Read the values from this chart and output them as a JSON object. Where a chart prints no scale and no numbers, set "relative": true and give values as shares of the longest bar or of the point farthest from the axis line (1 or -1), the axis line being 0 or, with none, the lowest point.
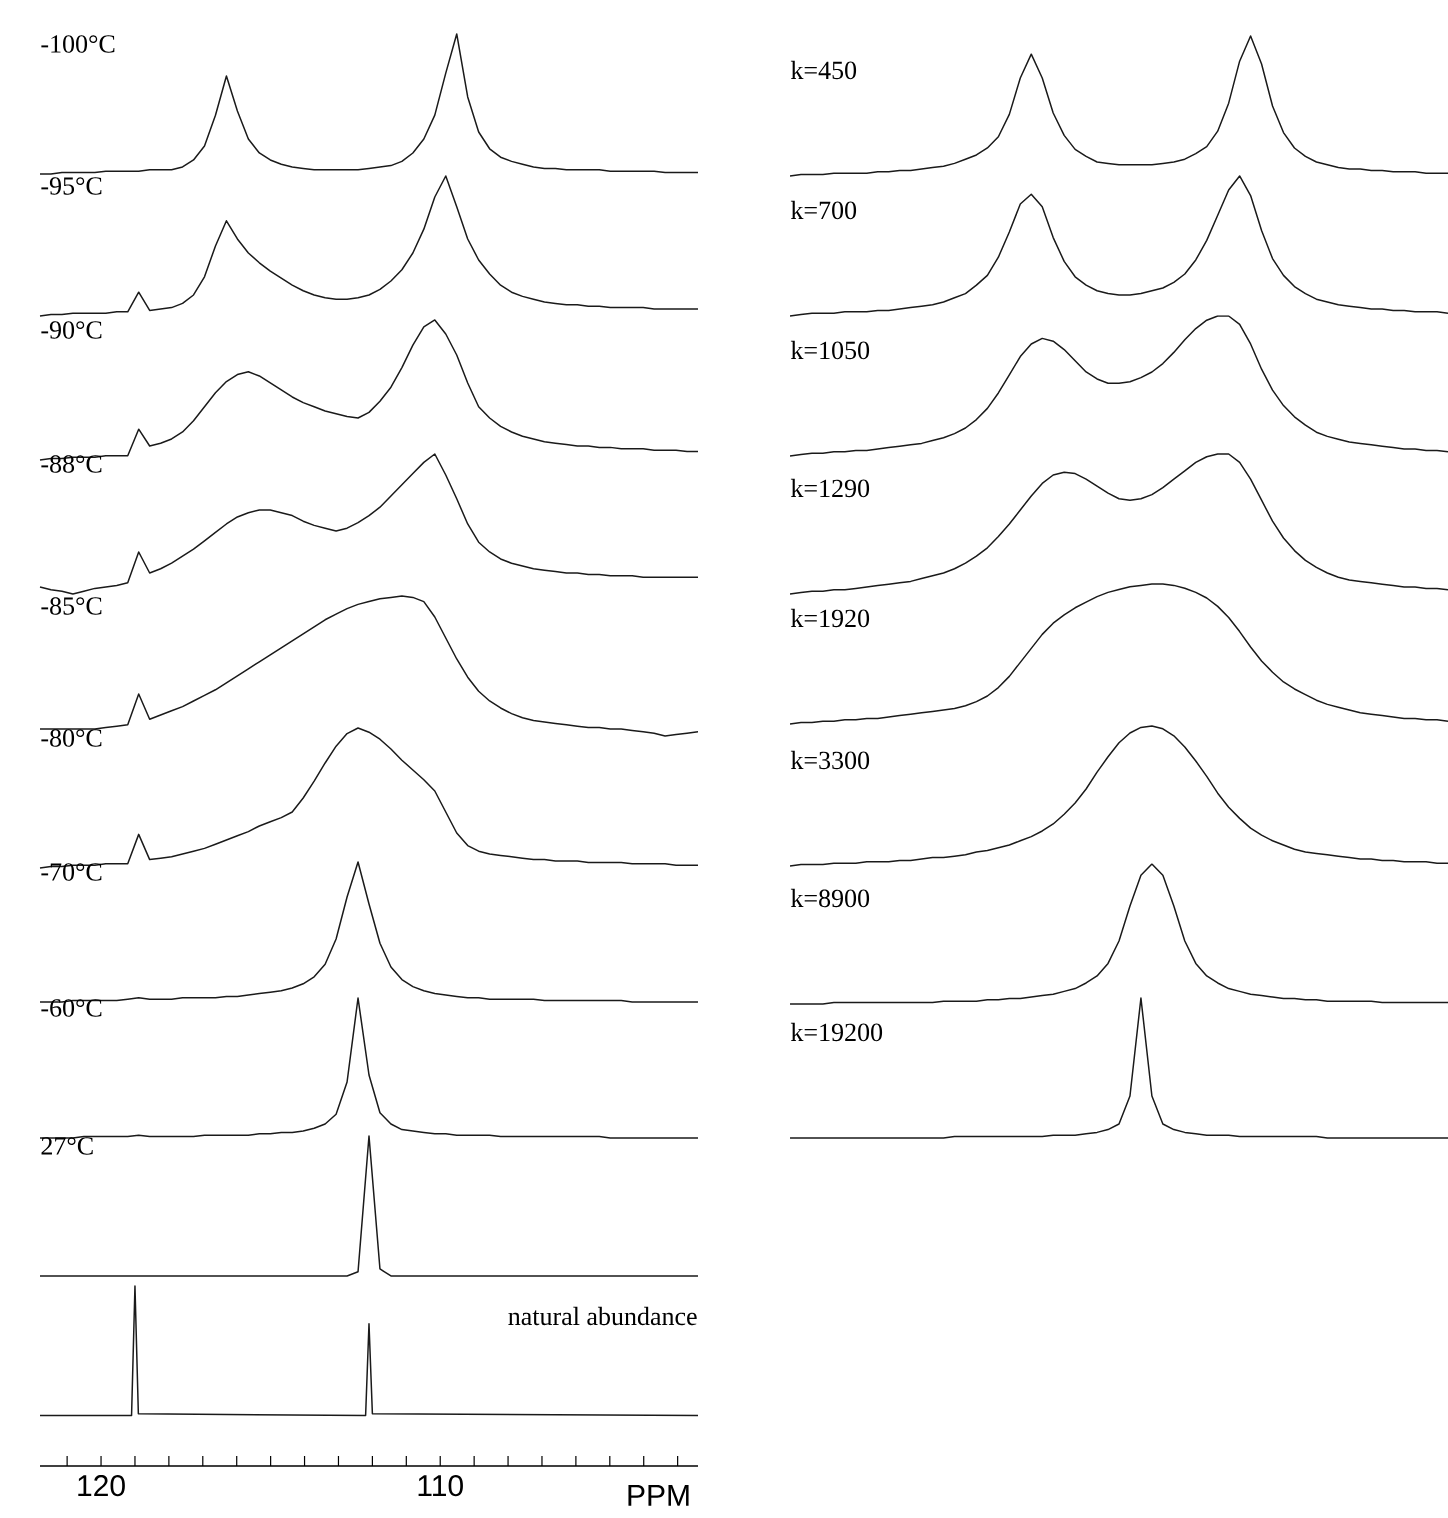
{
  "chart_data": [
    {
      "type": "line",
      "title": "-100°C",
      "relative": true,
      "color": "#1a1a1a",
      "categories": [
        null,
        null,
        null,
        null,
        null,
        null,
        null,
        null,
        null,
        null,
        null,
        null,
        null,
        null,
        null,
        null,
        null,
        null,
        null,
        null,
        null,
        null,
        null,
        null,
        null,
        null,
        null,
        null,
        null,
        null,
        null,
        null,
        null,
        null,
        null,
        null,
        null,
        null,
        null,
        null,
        null,
        null,
        null,
        null,
        null,
        null,
        null,
        null,
        null,
        null,
        null,
        null,
        null,
        null,
        null,
        null,
        null,
        null,
        null,
        null,
        null
      ],
      "values": [
        0,
        0,
        0.01,
        0.01,
        0.01,
        0.01,
        0.02,
        0.02,
        0.02,
        0.02,
        0.03,
        0.03,
        0.03,
        0.05,
        0.1,
        0.2,
        0.42,
        0.7,
        0.45,
        0.25,
        0.15,
        0.1,
        0.07,
        0.05,
        0.04,
        0.03,
        0.03,
        0.03,
        0.03,
        0.03,
        0.04,
        0.05,
        0.06,
        0.09,
        0.15,
        0.25,
        0.42,
        0.72,
        1.0,
        0.55,
        0.3,
        0.18,
        0.12,
        0.09,
        0.07,
        0.05,
        0.04,
        0.04,
        0.03,
        0.03,
        0.03,
        0.03,
        0.02,
        0.02,
        0.02,
        0.02,
        0.02,
        0.01,
        0.01,
        0.01,
        0.01
      ]
    },
    {
      "type": "line",
      "title": "-95°C",
      "relative": true,
      "color": "#1a1a1a",
      "categories": [
        null,
        null,
        null,
        null,
        null,
        null,
        null,
        null,
        null,
        null,
        null,
        null,
        null,
        null,
        null,
        null,
        null,
        null,
        null,
        null,
        null,
        null,
        null,
        null,
        null,
        null,
        null,
        null,
        null,
        null,
        null,
        null,
        null,
        null,
        null,
        null,
        null,
        null,
        null,
        null,
        null,
        null,
        null,
        null,
        null,
        null,
        null,
        null,
        null,
        null,
        null,
        null,
        null,
        null,
        null,
        null,
        null,
        null,
        null,
        null,
        null
      ],
      "values": [
        0,
        0.01,
        0.01,
        0.02,
        0.02,
        0.02,
        0.02,
        0.03,
        0.03,
        0.17,
        0.04,
        0.05,
        0.06,
        0.09,
        0.15,
        0.28,
        0.5,
        0.68,
        0.55,
        0.45,
        0.38,
        0.32,
        0.27,
        0.22,
        0.18,
        0.15,
        0.13,
        0.12,
        0.12,
        0.13,
        0.15,
        0.19,
        0.25,
        0.33,
        0.45,
        0.62,
        0.85,
        1.0,
        0.78,
        0.55,
        0.4,
        0.3,
        0.22,
        0.17,
        0.14,
        0.12,
        0.1,
        0.09,
        0.08,
        0.08,
        0.07,
        0.07,
        0.06,
        0.06,
        0.06,
        0.06,
        0.05,
        0.05,
        0.05,
        0.05,
        0.05
      ]
    },
    {
      "type": "line",
      "title": "-90°C",
      "relative": true,
      "color": "#1a1a1a",
      "categories": [
        null,
        null,
        null,
        null,
        null,
        null,
        null,
        null,
        null,
        null,
        null,
        null,
        null,
        null,
        null,
        null,
        null,
        null,
        null,
        null,
        null,
        null,
        null,
        null,
        null,
        null,
        null,
        null,
        null,
        null,
        null,
        null,
        null,
        null,
        null,
        null,
        null,
        null,
        null,
        null,
        null,
        null,
        null,
        null,
        null,
        null,
        null,
        null,
        null,
        null,
        null,
        null,
        null,
        null,
        null,
        null,
        null,
        null,
        null,
        null,
        null
      ],
      "values": [
        0,
        0.01,
        0.01,
        0.02,
        0.02,
        0.02,
        0.03,
        0.03,
        0.03,
        0.22,
        0.1,
        0.12,
        0.15,
        0.2,
        0.28,
        0.38,
        0.48,
        0.56,
        0.61,
        0.63,
        0.6,
        0.55,
        0.5,
        0.45,
        0.41,
        0.38,
        0.35,
        0.33,
        0.31,
        0.3,
        0.34,
        0.42,
        0.52,
        0.66,
        0.82,
        0.95,
        1.0,
        0.9,
        0.75,
        0.55,
        0.38,
        0.3,
        0.24,
        0.2,
        0.17,
        0.15,
        0.13,
        0.12,
        0.11,
        0.1,
        0.1,
        0.09,
        0.09,
        0.08,
        0.08,
        0.08,
        0.07,
        0.07,
        0.07,
        0.06,
        0.06
      ]
    },
    {
      "type": "line",
      "title": "-88°C",
      "relative": true,
      "color": "#1a1a1a",
      "categories": [
        null,
        null,
        null,
        null,
        null,
        null,
        null,
        null,
        null,
        null,
        null,
        null,
        null,
        null,
        null,
        null,
        null,
        null,
        null,
        null,
        null,
        null,
        null,
        null,
        null,
        null,
        null,
        null,
        null,
        null,
        null,
        null,
        null,
        null,
        null,
        null,
        null,
        null,
        null,
        null,
        null,
        null,
        null,
        null,
        null,
        null,
        null,
        null,
        null,
        null,
        null,
        null,
        null,
        null,
        null,
        null,
        null,
        null,
        null,
        null,
        null
      ],
      "values": [
        0.05,
        0.03,
        0.02,
        0,
        0.02,
        0.04,
        0.05,
        0.06,
        0.08,
        0.3,
        0.15,
        0.18,
        0.22,
        0.27,
        0.32,
        0.38,
        0.44,
        0.5,
        0.55,
        0.58,
        0.6,
        0.6,
        0.58,
        0.56,
        0.52,
        0.49,
        0.47,
        0.45,
        0.47,
        0.51,
        0.56,
        0.62,
        0.7,
        0.78,
        0.86,
        0.94,
        1.0,
        0.85,
        0.68,
        0.5,
        0.37,
        0.3,
        0.25,
        0.22,
        0.2,
        0.18,
        0.17,
        0.16,
        0.15,
        0.15,
        0.14,
        0.14,
        0.13,
        0.13,
        0.13,
        0.12,
        0.12,
        0.12,
        0.12,
        0.12,
        0.12
      ]
    },
    {
      "type": "line",
      "title": "-85°C",
      "relative": true,
      "color": "#1a1a1a",
      "categories": [
        null,
        null,
        null,
        null,
        null,
        null,
        null,
        null,
        null,
        null,
        null,
        null,
        null,
        null,
        null,
        null,
        null,
        null,
        null,
        null,
        null,
        null,
        null,
        null,
        null,
        null,
        null,
        null,
        null,
        null,
        null,
        null,
        null,
        null,
        null,
        null,
        null,
        null,
        null,
        null,
        null,
        null,
        null,
        null,
        null,
        null,
        null,
        null,
        null,
        null,
        null,
        null,
        null,
        null,
        null,
        null,
        null,
        null,
        null,
        null,
        null
      ],
      "values": [
        0.05,
        0.05,
        0.05,
        0.05,
        0.05,
        0.05,
        0.06,
        0.07,
        0.08,
        0.3,
        0.12,
        0.15,
        0.18,
        0.21,
        0.25,
        0.29,
        0.33,
        0.38,
        0.43,
        0.48,
        0.53,
        0.58,
        0.63,
        0.68,
        0.73,
        0.78,
        0.83,
        0.87,
        0.91,
        0.94,
        0.96,
        0.98,
        0.99,
        1.0,
        0.99,
        0.96,
        0.85,
        0.7,
        0.55,
        0.42,
        0.32,
        0.25,
        0.2,
        0.16,
        0.13,
        0.11,
        0.1,
        0.09,
        0.08,
        0.07,
        0.06,
        0.06,
        0.05,
        0.05,
        0.04,
        0.03,
        0.02,
        0,
        0.01,
        0.02,
        0.03
      ]
    },
    {
      "type": "line",
      "title": "-80°C",
      "relative": true,
      "color": "#1a1a1a",
      "categories": [
        null,
        null,
        null,
        null,
        null,
        null,
        null,
        null,
        null,
        null,
        null,
        null,
        null,
        null,
        null,
        null,
        null,
        null,
        null,
        null,
        null,
        null,
        null,
        null,
        null,
        null,
        null,
        null,
        null,
        null,
        null,
        null,
        null,
        null,
        null,
        null,
        null,
        null,
        null,
        null,
        null,
        null,
        null,
        null,
        null,
        null,
        null,
        null,
        null,
        null,
        null,
        null,
        null,
        null,
        null,
        null,
        null,
        null,
        null,
        null,
        null
      ],
      "values": [
        0,
        0.01,
        0.01,
        0.02,
        0.02,
        0.02,
        0.03,
        0.03,
        0.03,
        0.24,
        0.06,
        0.07,
        0.08,
        0.1,
        0.12,
        0.14,
        0.17,
        0.2,
        0.23,
        0.26,
        0.3,
        0.33,
        0.36,
        0.4,
        0.5,
        0.62,
        0.75,
        0.87,
        0.96,
        1.0,
        0.97,
        0.92,
        0.85,
        0.77,
        0.7,
        0.63,
        0.55,
        0.4,
        0.25,
        0.16,
        0.12,
        0.1,
        0.09,
        0.08,
        0.07,
        0.06,
        0.06,
        0.05,
        0.05,
        0.05,
        0.04,
        0.04,
        0.04,
        0.04,
        0.03,
        0.03,
        0.03,
        0.03,
        0.02,
        0.02,
        0.02
      ]
    },
    {
      "type": "line",
      "title": "-70°C",
      "relative": true,
      "color": "#1a1a1a",
      "categories": [
        null,
        null,
        null,
        null,
        null,
        null,
        null,
        null,
        null,
        null,
        null,
        null,
        null,
        null,
        null,
        null,
        null,
        null,
        null,
        null,
        null,
        null,
        null,
        null,
        null,
        null,
        null,
        null,
        null,
        null,
        null,
        null,
        null,
        null,
        null,
        null,
        null,
        null,
        null,
        null,
        null,
        null,
        null,
        null,
        null,
        null,
        null,
        null,
        null,
        null,
        null,
        null,
        null,
        null,
        null,
        null,
        null,
        null,
        null,
        null,
        null
      ],
      "values": [
        0,
        0,
        0,
        0.01,
        0.01,
        0.01,
        0.01,
        0.01,
        0.02,
        0.03,
        0.02,
        0.02,
        0.02,
        0.03,
        0.03,
        0.03,
        0.03,
        0.04,
        0.04,
        0.05,
        0.06,
        0.07,
        0.08,
        0.1,
        0.13,
        0.18,
        0.27,
        0.45,
        0.75,
        1.0,
        0.7,
        0.42,
        0.25,
        0.16,
        0.11,
        0.08,
        0.06,
        0.05,
        0.04,
        0.03,
        0.03,
        0.02,
        0.02,
        0.02,
        0.02,
        0.02,
        0.01,
        0.01,
        0.01,
        0.01,
        0.01,
        0.01,
        0.01,
        0.01,
        0,
        0,
        0,
        0,
        0,
        0,
        0
      ]
    },
    {
      "type": "line",
      "title": "-60°C",
      "relative": true,
      "color": "#1a1a1a",
      "categories": [
        null,
        null,
        null,
        null,
        null,
        null,
        null,
        null,
        null,
        null,
        null,
        null,
        null,
        null,
        null,
        null,
        null,
        null,
        null,
        null,
        null,
        null,
        null,
        null,
        null,
        null,
        null,
        null,
        null,
        null,
        null,
        null,
        null,
        null,
        null,
        null,
        null,
        null,
        null,
        null,
        null,
        null,
        null,
        null,
        null,
        null,
        null,
        null,
        null,
        null,
        null,
        null,
        null,
        null,
        null,
        null,
        null,
        null,
        null,
        null,
        null
      ],
      "values": [
        0,
        0,
        0,
        0,
        0.01,
        0.01,
        0.01,
        0.01,
        0.01,
        0.02,
        0.01,
        0.01,
        0.01,
        0.01,
        0.01,
        0.02,
        0.02,
        0.02,
        0.02,
        0.02,
        0.03,
        0.03,
        0.04,
        0.04,
        0.05,
        0.07,
        0.1,
        0.17,
        0.4,
        1.0,
        0.45,
        0.18,
        0.1,
        0.06,
        0.05,
        0.04,
        0.03,
        0.03,
        0.02,
        0.02,
        0.02,
        0.02,
        0.01,
        0.01,
        0.01,
        0.01,
        0.01,
        0.01,
        0.01,
        0.01,
        0.01,
        0.01,
        0,
        0,
        0,
        0,
        0,
        0,
        0,
        0,
        0
      ]
    },
    {
      "type": "line",
      "title": "27°C",
      "relative": true,
      "color": "#1a1a1a",
      "categories": [
        null,
        null,
        null,
        null,
        null,
        null,
        null,
        null,
        null,
        null,
        null,
        null,
        null,
        null,
        null,
        null,
        null,
        null,
        null,
        null,
        null,
        null,
        null,
        null,
        null,
        null,
        null,
        null,
        null,
        null,
        null,
        null,
        null,
        null,
        null,
        null,
        null,
        null,
        null,
        null,
        null,
        null,
        null,
        null,
        null,
        null,
        null,
        null,
        null,
        null,
        null,
        null,
        null,
        null,
        null,
        null,
        null,
        null,
        null,
        null,
        null
      ],
      "values": [
        0,
        0,
        0,
        0,
        0,
        0,
        0,
        0,
        0,
        0,
        0,
        0,
        0,
        0,
        0,
        0,
        0,
        0,
        0,
        0,
        0,
        0,
        0,
        0,
        0,
        0,
        0,
        0,
        0,
        0.03,
        1.0,
        0.05,
        0,
        0,
        0,
        0,
        0,
        0,
        0,
        0,
        0,
        0,
        0,
        0,
        0,
        0,
        0,
        0,
        0,
        0,
        0,
        0,
        0,
        0,
        0,
        0,
        0,
        0,
        0,
        0,
        0
      ]
    },
    {
      "type": "line",
      "annotations": [
        "natural abundance"
      ],
      "xlabel": "PPM",
      "relative": true,
      "color": "#1a1a1a",
      "tick_labels": "x",
      "xlim": [
        121.8,
        102.4
      ],
      "xticks": [
        {
          "value": 121,
          "label": null
        },
        120,
        {
          "value": 119,
          "label": null
        },
        {
          "value": 118,
          "label": null
        },
        {
          "value": 117,
          "label": null
        },
        {
          "value": 116,
          "label": null
        },
        {
          "value": 115,
          "label": null
        },
        {
          "value": 114,
          "label": null
        },
        {
          "value": 113,
          "label": null
        },
        {
          "value": 112,
          "label": null
        },
        {
          "value": 111,
          "label": null
        },
        110,
        {
          "value": 109,
          "label": null
        },
        {
          "value": 108,
          "label": null
        },
        {
          "value": 107,
          "label": null
        },
        {
          "value": 106,
          "label": null
        },
        {
          "value": 105,
          "label": null
        },
        {
          "value": 104,
          "label": null
        },
        {
          "value": 103,
          "label": null
        }
      ],
      "x": [
        121.8,
        119.1,
        119.0,
        118.9,
        112.2,
        112.1,
        112.0,
        102.4
      ],
      "values": [
        0.28,
        0.28,
        1.0,
        0.29,
        0.28,
        0.79,
        0.29,
        0.28
      ]
    },
    {
      "type": "line",
      "title": "k=450",
      "relative": true,
      "color": "#1a1a1a",
      "categories": [
        null,
        null,
        null,
        null,
        null,
        null,
        null,
        null,
        null,
        null,
        null,
        null,
        null,
        null,
        null,
        null,
        null,
        null,
        null,
        null,
        null,
        null,
        null,
        null,
        null,
        null,
        null,
        null,
        null,
        null,
        null,
        null,
        null,
        null,
        null,
        null,
        null,
        null,
        null,
        null,
        null,
        null,
        null,
        null,
        null,
        null,
        null,
        null,
        null,
        null,
        null,
        null,
        null,
        null,
        null,
        null,
        null,
        null,
        null,
        null,
        null
      ],
      "values": [
        0,
        0.01,
        0.01,
        0.01,
        0.02,
        0.02,
        0.02,
        0.02,
        0.03,
        0.03,
        0.04,
        0.04,
        0.05,
        0.06,
        0.07,
        0.09,
        0.12,
        0.15,
        0.2,
        0.28,
        0.44,
        0.7,
        0.87,
        0.7,
        0.45,
        0.29,
        0.19,
        0.14,
        0.1,
        0.09,
        0.08,
        0.08,
        0.08,
        0.08,
        0.09,
        0.1,
        0.12,
        0.16,
        0.21,
        0.32,
        0.52,
        0.82,
        1.0,
        0.8,
        0.5,
        0.31,
        0.2,
        0.14,
        0.1,
        0.08,
        0.06,
        0.05,
        0.05,
        0.04,
        0.04,
        0.03,
        0.03,
        0.03,
        0.02,
        0.02,
        0.02
      ]
    },
    {
      "type": "line",
      "title": "k=700",
      "relative": true,
      "color": "#1a1a1a",
      "categories": [
        null,
        null,
        null,
        null,
        null,
        null,
        null,
        null,
        null,
        null,
        null,
        null,
        null,
        null,
        null,
        null,
        null,
        null,
        null,
        null,
        null,
        null,
        null,
        null,
        null,
        null,
        null,
        null,
        null,
        null,
        null,
        null,
        null,
        null,
        null,
        null,
        null,
        null,
        null,
        null,
        null,
        null,
        null,
        null,
        null,
        null,
        null,
        null,
        null,
        null,
        null,
        null,
        null,
        null,
        null,
        null,
        null,
        null,
        null,
        null,
        null
      ],
      "values": [
        0,
        0.01,
        0.02,
        0.02,
        0.02,
        0.03,
        0.03,
        0.03,
        0.04,
        0.04,
        0.05,
        0.06,
        0.07,
        0.08,
        0.1,
        0.13,
        0.16,
        0.22,
        0.29,
        0.42,
        0.6,
        0.8,
        0.87,
        0.78,
        0.56,
        0.39,
        0.28,
        0.22,
        0.18,
        0.16,
        0.15,
        0.15,
        0.16,
        0.18,
        0.2,
        0.24,
        0.3,
        0.4,
        0.54,
        0.72,
        0.9,
        1.0,
        0.86,
        0.61,
        0.41,
        0.29,
        0.21,
        0.16,
        0.12,
        0.1,
        0.08,
        0.07,
        0.06,
        0.05,
        0.05,
        0.04,
        0.04,
        0.03,
        0.03,
        0.03,
        0.02
      ]
    },
    {
      "type": "line",
      "title": "k=1050",
      "relative": true,
      "color": "#1a1a1a",
      "categories": [
        null,
        null,
        null,
        null,
        null,
        null,
        null,
        null,
        null,
        null,
        null,
        null,
        null,
        null,
        null,
        null,
        null,
        null,
        null,
        null,
        null,
        null,
        null,
        null,
        null,
        null,
        null,
        null,
        null,
        null,
        null,
        null,
        null,
        null,
        null,
        null,
        null,
        null,
        null,
        null,
        null,
        null,
        null,
        null,
        null,
        null,
        null,
        null,
        null,
        null,
        null,
        null,
        null,
        null,
        null,
        null,
        null,
        null,
        null,
        null,
        null
      ],
      "values": [
        0,
        0.01,
        0.02,
        0.02,
        0.03,
        0.03,
        0.04,
        0.04,
        0.05,
        0.06,
        0.07,
        0.08,
        0.09,
        0.11,
        0.13,
        0.16,
        0.2,
        0.26,
        0.34,
        0.45,
        0.58,
        0.71,
        0.8,
        0.84,
        0.82,
        0.76,
        0.68,
        0.6,
        0.55,
        0.52,
        0.52,
        0.53,
        0.56,
        0.6,
        0.66,
        0.74,
        0.83,
        0.91,
        0.97,
        1.0,
        1.0,
        0.94,
        0.8,
        0.62,
        0.47,
        0.36,
        0.28,
        0.22,
        0.17,
        0.14,
        0.12,
        0.1,
        0.09,
        0.08,
        0.07,
        0.06,
        0.05,
        0.05,
        0.04,
        0.04,
        0.03
      ]
    },
    {
      "type": "line",
      "title": "k=1290",
      "relative": true,
      "color": "#1a1a1a",
      "categories": [
        null,
        null,
        null,
        null,
        null,
        null,
        null,
        null,
        null,
        null,
        null,
        null,
        null,
        null,
        null,
        null,
        null,
        null,
        null,
        null,
        null,
        null,
        null,
        null,
        null,
        null,
        null,
        null,
        null,
        null,
        null,
        null,
        null,
        null,
        null,
        null,
        null,
        null,
        null,
        null,
        null,
        null,
        null,
        null,
        null,
        null,
        null,
        null,
        null,
        null,
        null,
        null,
        null,
        null,
        null,
        null,
        null,
        null,
        null,
        null,
        null
      ],
      "values": [
        0,
        0.01,
        0.02,
        0.02,
        0.03,
        0.03,
        0.04,
        0.05,
        0.06,
        0.07,
        0.08,
        0.09,
        0.11,
        0.13,
        0.15,
        0.18,
        0.22,
        0.27,
        0.33,
        0.41,
        0.5,
        0.6,
        0.7,
        0.79,
        0.85,
        0.87,
        0.86,
        0.82,
        0.77,
        0.72,
        0.68,
        0.67,
        0.68,
        0.71,
        0.76,
        0.82,
        0.88,
        0.94,
        0.98,
        1.0,
        1.0,
        0.94,
        0.82,
        0.67,
        0.52,
        0.4,
        0.31,
        0.24,
        0.19,
        0.15,
        0.12,
        0.1,
        0.09,
        0.08,
        0.07,
        0.06,
        0.05,
        0.05,
        0.04,
        0.04,
        0.03
      ]
    },
    {
      "type": "line",
      "title": "k=1920",
      "relative": true,
      "color": "#1a1a1a",
      "categories": [
        null,
        null,
        null,
        null,
        null,
        null,
        null,
        null,
        null,
        null,
        null,
        null,
        null,
        null,
        null,
        null,
        null,
        null,
        null,
        null,
        null,
        null,
        null,
        null,
        null,
        null,
        null,
        null,
        null,
        null,
        null,
        null,
        null,
        null,
        null,
        null,
        null,
        null,
        null,
        null,
        null,
        null,
        null,
        null,
        null,
        null,
        null,
        null,
        null,
        null,
        null,
        null,
        null,
        null,
        null,
        null,
        null,
        null,
        null,
        null,
        null
      ],
      "values": [
        0,
        0.01,
        0.01,
        0.02,
        0.02,
        0.03,
        0.03,
        0.04,
        0.04,
        0.05,
        0.06,
        0.07,
        0.08,
        0.09,
        0.1,
        0.11,
        0.13,
        0.16,
        0.2,
        0.26,
        0.34,
        0.44,
        0.54,
        0.64,
        0.72,
        0.78,
        0.83,
        0.87,
        0.91,
        0.94,
        0.96,
        0.98,
        0.99,
        1.0,
        1.0,
        0.99,
        0.97,
        0.94,
        0.9,
        0.84,
        0.76,
        0.66,
        0.55,
        0.45,
        0.37,
        0.3,
        0.25,
        0.21,
        0.17,
        0.14,
        0.12,
        0.1,
        0.08,
        0.07,
        0.06,
        0.05,
        0.04,
        0.04,
        0.03,
        0.03,
        0.02
      ]
    },
    {
      "type": "line",
      "title": "k=3300",
      "relative": true,
      "color": "#1a1a1a",
      "categories": [
        null,
        null,
        null,
        null,
        null,
        null,
        null,
        null,
        null,
        null,
        null,
        null,
        null,
        null,
        null,
        null,
        null,
        null,
        null,
        null,
        null,
        null,
        null,
        null,
        null,
        null,
        null,
        null,
        null,
        null,
        null,
        null,
        null,
        null,
        null,
        null,
        null,
        null,
        null,
        null,
        null,
        null,
        null,
        null,
        null,
        null,
        null,
        null,
        null,
        null,
        null,
        null,
        null,
        null,
        null,
        null,
        null,
        null,
        null,
        null,
        null
      ],
      "values": [
        0,
        0.01,
        0.01,
        0.01,
        0.02,
        0.02,
        0.02,
        0.03,
        0.03,
        0.03,
        0.04,
        0.04,
        0.05,
        0.06,
        0.06,
        0.07,
        0.08,
        0.1,
        0.11,
        0.13,
        0.15,
        0.18,
        0.21,
        0.25,
        0.3,
        0.37,
        0.45,
        0.55,
        0.67,
        0.78,
        0.88,
        0.95,
        0.99,
        1.0,
        0.98,
        0.93,
        0.85,
        0.75,
        0.64,
        0.52,
        0.42,
        0.34,
        0.27,
        0.22,
        0.18,
        0.15,
        0.12,
        0.1,
        0.09,
        0.08,
        0.07,
        0.06,
        0.05,
        0.05,
        0.04,
        0.04,
        0.03,
        0.03,
        0.03,
        0.02,
        0.02
      ]
    },
    {
      "type": "line",
      "title": "k=8900",
      "relative": true,
      "color": "#1a1a1a",
      "categories": [
        null,
        null,
        null,
        null,
        null,
        null,
        null,
        null,
        null,
        null,
        null,
        null,
        null,
        null,
        null,
        null,
        null,
        null,
        null,
        null,
        null,
        null,
        null,
        null,
        null,
        null,
        null,
        null,
        null,
        null,
        null,
        null,
        null,
        null,
        null,
        null,
        null,
        null,
        null,
        null,
        null,
        null,
        null,
        null,
        null,
        null,
        null,
        null,
        null,
        null,
        null,
        null,
        null,
        null,
        null,
        null,
        null,
        null,
        null,
        null,
        null
      ],
      "values": [
        0,
        0,
        0,
        0,
        0.01,
        0.01,
        0.01,
        0.01,
        0.01,
        0.01,
        0.01,
        0.01,
        0.01,
        0.01,
        0.02,
        0.02,
        0.02,
        0.02,
        0.03,
        0.03,
        0.04,
        0.04,
        0.05,
        0.06,
        0.07,
        0.09,
        0.11,
        0.15,
        0.2,
        0.29,
        0.45,
        0.7,
        0.92,
        1.0,
        0.92,
        0.7,
        0.45,
        0.29,
        0.2,
        0.15,
        0.11,
        0.09,
        0.07,
        0.06,
        0.05,
        0.04,
        0.04,
        0.03,
        0.03,
        0.02,
        0.02,
        0.02,
        0.02,
        0.02,
        0.01,
        0.01,
        0.01,
        0.01,
        0.01,
        0.01,
        0.01
      ]
    },
    {
      "type": "line",
      "title": "k=19200",
      "relative": true,
      "color": "#1a1a1a",
      "categories": [
        null,
        null,
        null,
        null,
        null,
        null,
        null,
        null,
        null,
        null,
        null,
        null,
        null,
        null,
        null,
        null,
        null,
        null,
        null,
        null,
        null,
        null,
        null,
        null,
        null,
        null,
        null,
        null,
        null,
        null,
        null,
        null,
        null,
        null,
        null,
        null,
        null,
        null,
        null,
        null,
        null,
        null,
        null,
        null,
        null,
        null,
        null,
        null,
        null,
        null,
        null,
        null,
        null,
        null,
        null,
        null,
        null,
        null,
        null,
        null,
        null
      ],
      "values": [
        0,
        0,
        0,
        0,
        0,
        0,
        0,
        0,
        0,
        0,
        0,
        0,
        0,
        0,
        0,
        0.01,
        0.01,
        0.01,
        0.01,
        0.01,
        0.01,
        0.01,
        0.01,
        0.01,
        0.02,
        0.02,
        0.02,
        0.03,
        0.04,
        0.06,
        0.1,
        0.3,
        1.0,
        0.3,
        0.1,
        0.06,
        0.04,
        0.03,
        0.02,
        0.02,
        0.02,
        0.01,
        0.01,
        0.01,
        0.01,
        0.01,
        0.01,
        0.01,
        0.01,
        0,
        0,
        0,
        0,
        0,
        0,
        0,
        0,
        0,
        0,
        0,
        0
      ]
    }
  ]
}
